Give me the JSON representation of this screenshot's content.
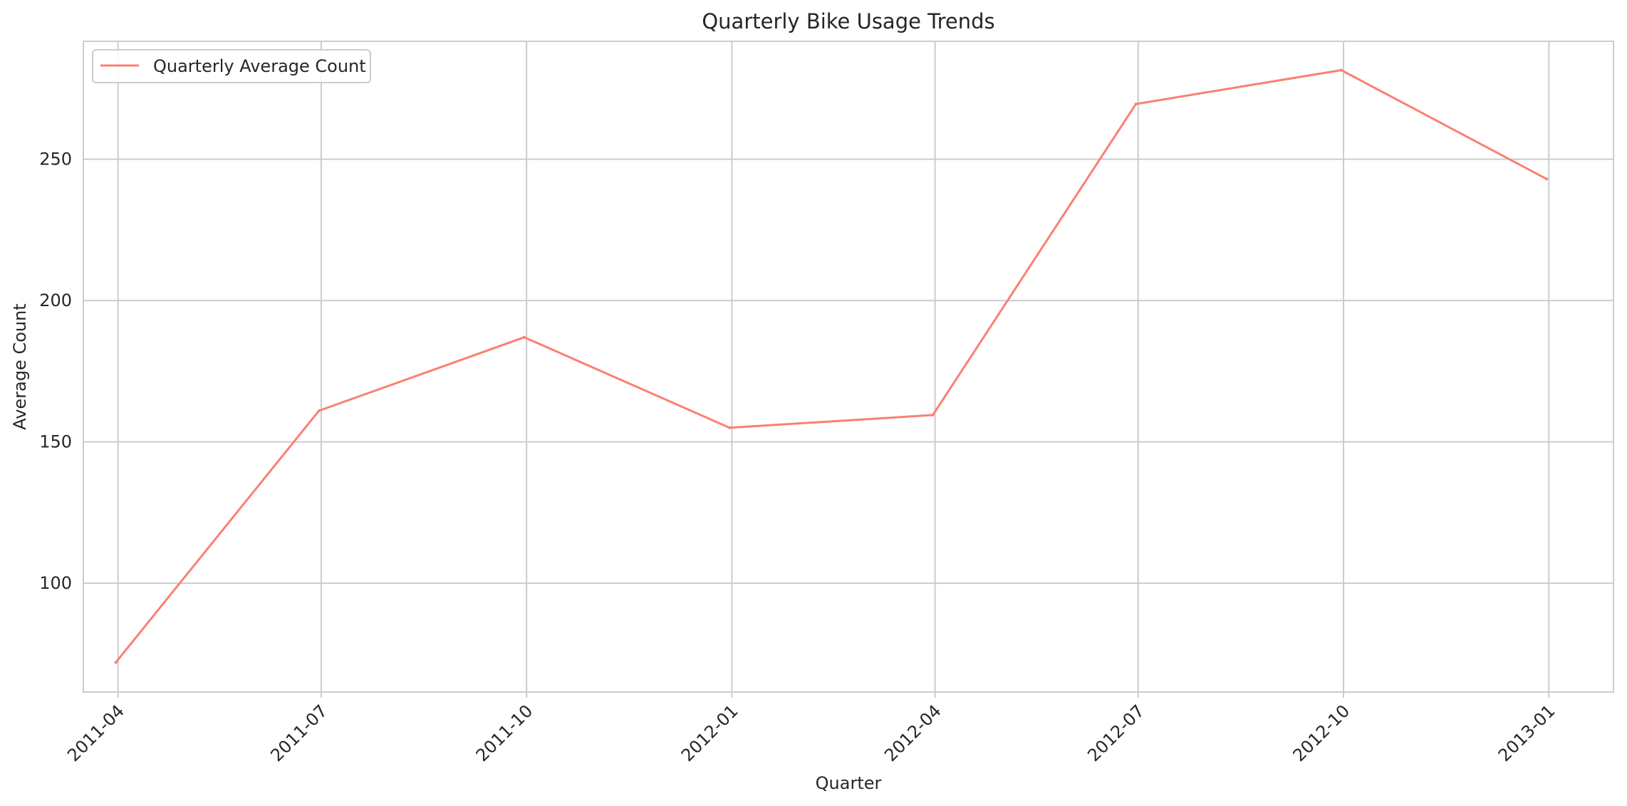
{
  "chart_data": {
    "type": "line",
    "title": "Quarterly Bike Usage Trends",
    "xlabel": "Quarter",
    "ylabel": "Average Count",
    "x_ticks": [
      "2011-04",
      "2011-07",
      "2011-10",
      "2012-01",
      "2012-04",
      "2012-07",
      "2012-10",
      "2013-01"
    ],
    "x": [
      "2011-03-31",
      "2011-06-30",
      "2011-09-30",
      "2011-12-31",
      "2012-03-31",
      "2012-06-30",
      "2012-09-30",
      "2012-12-31"
    ],
    "y_ticks": [
      100,
      150,
      200,
      250
    ],
    "ylim": [
      61.5,
      291.7
    ],
    "grid": true,
    "legend_position": "top-left",
    "series": [
      {
        "name": "Quarterly Average Count",
        "color": "#fa8072",
        "values": [
          72.0,
          161.0,
          187.0,
          155.0,
          159.5,
          269.5,
          281.5,
          243.0
        ]
      }
    ]
  }
}
